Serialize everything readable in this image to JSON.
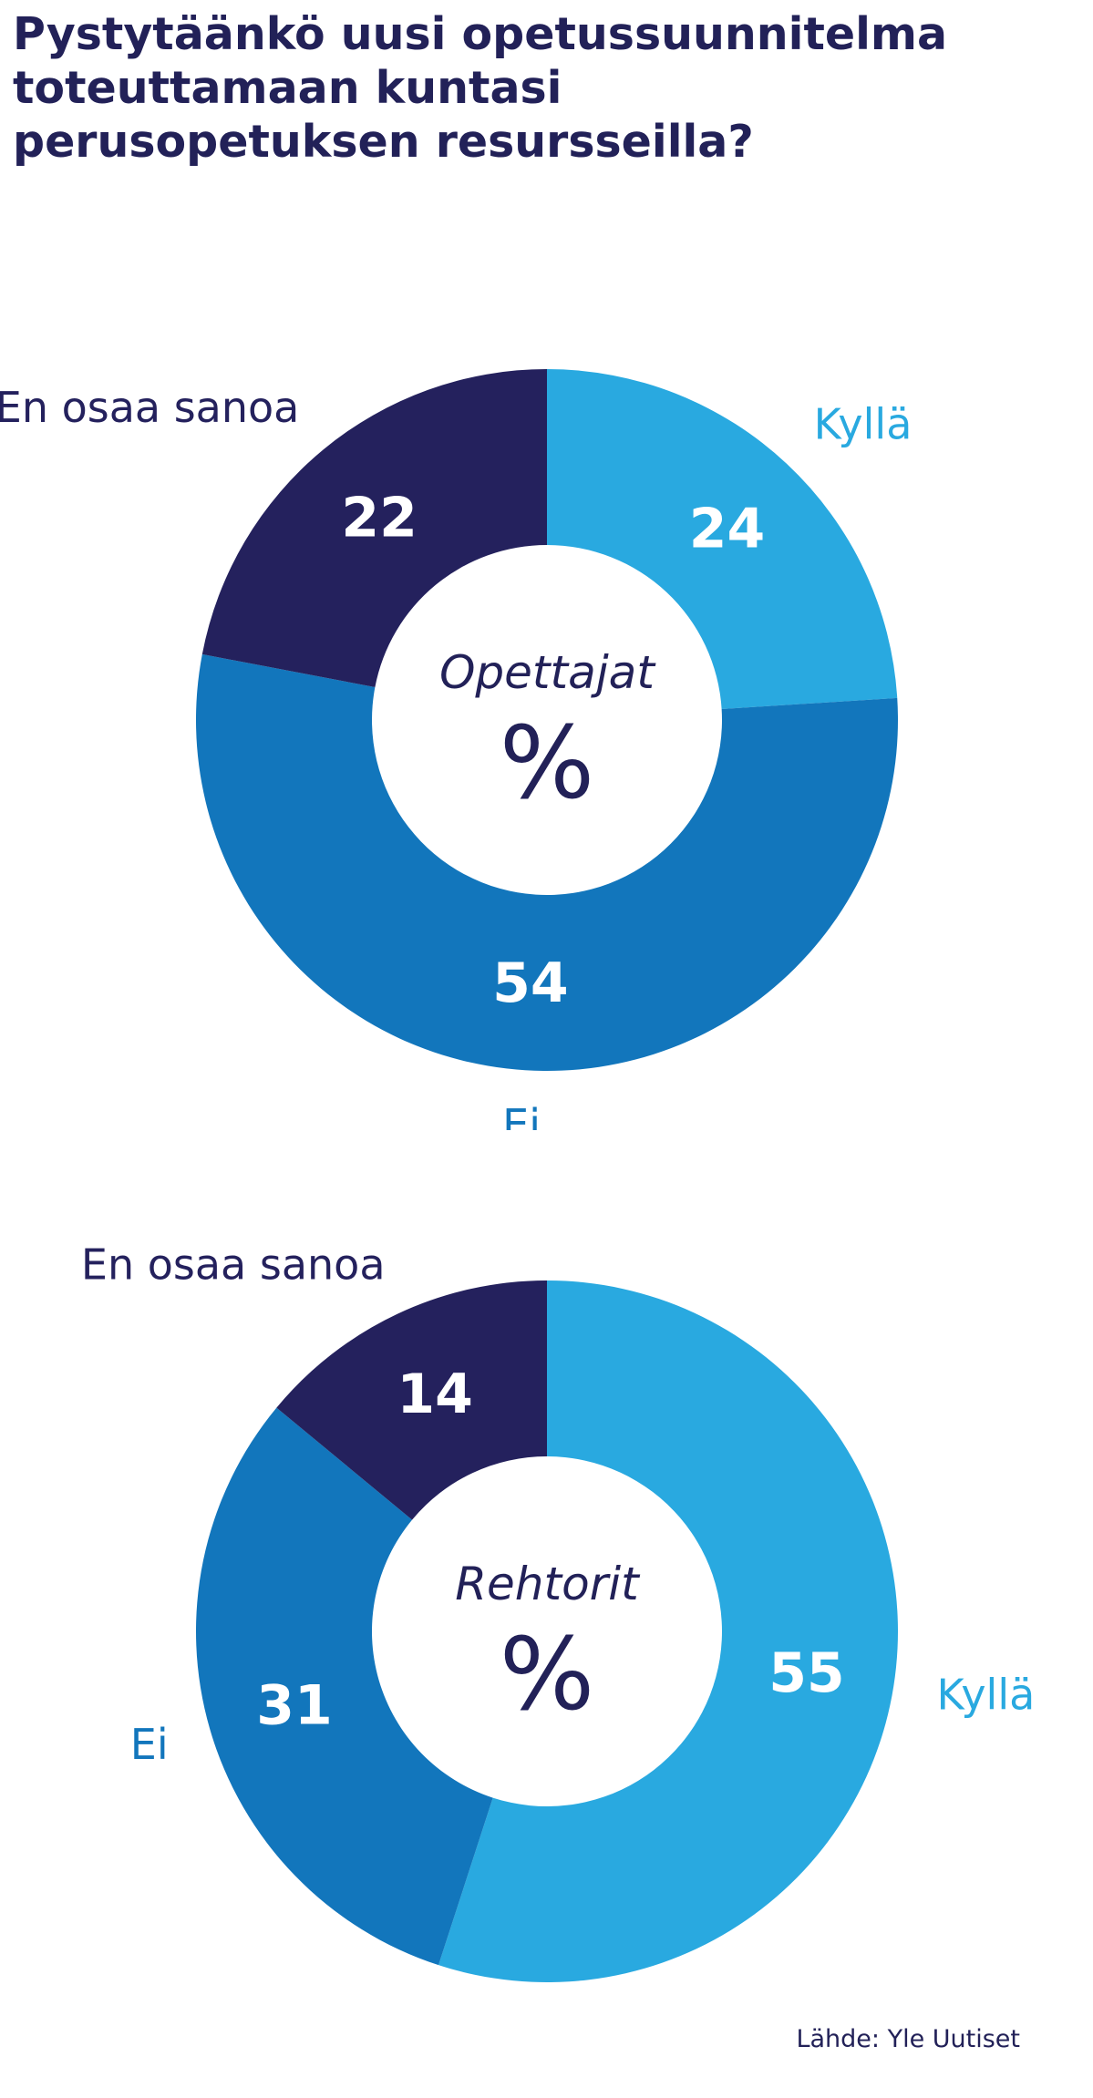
{
  "title_lines": [
    "Pystytäänkö uusi opetussuunnitelma",
    "toteuttamaan kuntasi",
    "perusopetuksen resursseilla?"
  ],
  "source": "Lähde: Yle Uutiset",
  "colors": {
    "title": "#222158",
    "kylla": "#29a9e0",
    "ei": "#1276bc",
    "en_osaa_sanoa": "#24215d",
    "value_text": "#ffffff"
  },
  "chart_data": [
    {
      "type": "donut",
      "center_label": "Opettajat",
      "center_unit": "%",
      "slices": [
        {
          "label": "Kyllä",
          "value": 24,
          "color": "#29a9e0"
        },
        {
          "label": "Ei",
          "value": 54,
          "color": "#1276bc"
        },
        {
          "label": "En osaa sanoa",
          "value": 22,
          "color": "#24215d"
        }
      ]
    },
    {
      "type": "donut",
      "center_label": "Rehtorit",
      "center_unit": "%",
      "slices": [
        {
          "label": "Kyllä",
          "value": 55,
          "color": "#29a9e0"
        },
        {
          "label": "Ei",
          "value": 31,
          "color": "#1276bc"
        },
        {
          "label": "En osaa sanoa",
          "value": 14,
          "color": "#24215d"
        }
      ]
    }
  ]
}
